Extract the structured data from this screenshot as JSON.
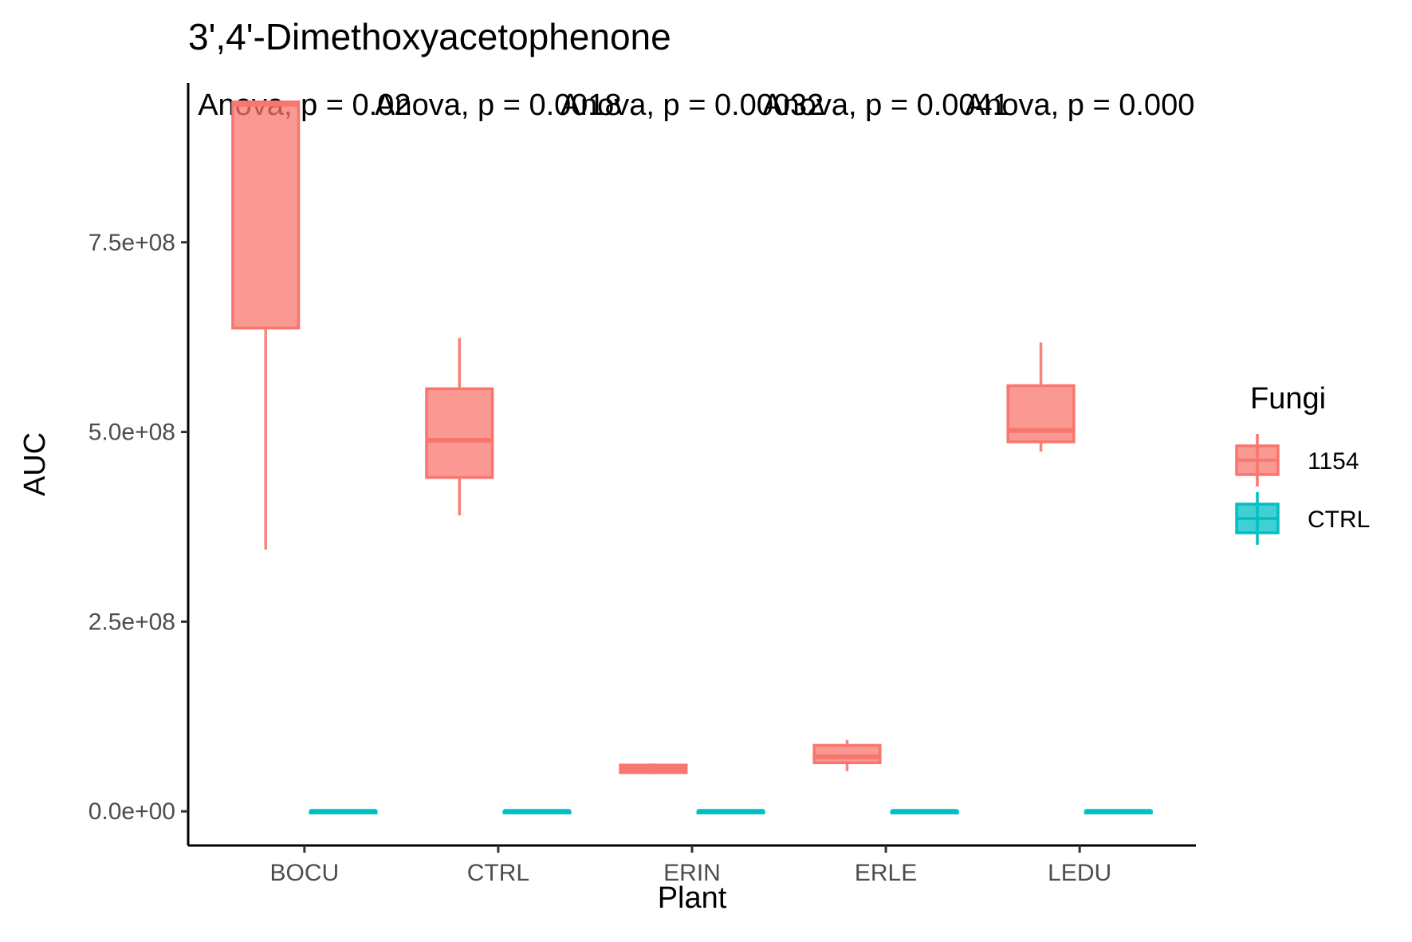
{
  "chart_data": {
    "type": "box",
    "title": "3',4'-Dimethoxyacetophenone",
    "xlabel": "Plant",
    "ylabel": "AUC",
    "categories": [
      "BOCU",
      "CTRL",
      "ERIN",
      "ERLE",
      "LEDU"
    ],
    "ylim": [
      -45000000,
      960000000
    ],
    "yticks": [
      0,
      250000000,
      500000000,
      750000000
    ],
    "ytick_labels": [
      "0.0e+00",
      "2.5e+08",
      "5.0e+08",
      "7.5e+08"
    ],
    "grid": false,
    "legend": {
      "title": "Fungi",
      "position": "right",
      "entries": [
        {
          "label": "1154",
          "color": "#f8766d"
        },
        {
          "label": "CTRL",
          "color": "#00bfc4"
        }
      ]
    },
    "series": [
      {
        "name": "1154",
        "color": "#f8766d",
        "boxes": [
          {
            "category": "BOCU",
            "min": 345000000,
            "q1": 637000000,
            "median": 932000000,
            "q3": 935000000,
            "max": 935000000
          },
          {
            "category": "CTRL",
            "min": 390000000,
            "q1": 440000000,
            "median": 489000000,
            "q3": 557000000,
            "max": 624000000
          },
          {
            "category": "ERIN",
            "min": 49000000,
            "q1": 51000000,
            "median": 56000000,
            "q3": 61000000,
            "max": 63000000
          },
          {
            "category": "ERLE",
            "min": 53000000,
            "q1": 64000000,
            "median": 72000000,
            "q3": 87000000,
            "max": 94000000
          },
          {
            "category": "LEDU",
            "min": 474000000,
            "q1": 487000000,
            "median": 502000000,
            "q3": 561000000,
            "max": 618000000
          }
        ]
      },
      {
        "name": "CTRL",
        "color": "#00bfc4",
        "boxes": [
          {
            "category": "BOCU",
            "min": 0,
            "q1": 0,
            "median": 0,
            "q3": 0,
            "max": 0
          },
          {
            "category": "CTRL",
            "min": 0,
            "q1": 0,
            "median": 0,
            "q3": 0,
            "max": 0
          },
          {
            "category": "ERIN",
            "min": 0,
            "q1": 0,
            "median": 0,
            "q3": 0,
            "max": 0
          },
          {
            "category": "ERLE",
            "min": 0,
            "q1": 0,
            "median": 0,
            "q3": 0,
            "max": 0
          },
          {
            "category": "LEDU",
            "min": 0,
            "q1": 0,
            "median": 0,
            "q3": 0,
            "max": 0
          }
        ]
      }
    ],
    "annotations": [
      {
        "category": "BOCU",
        "text": "Anova, p = 0.02"
      },
      {
        "category": "CTRL",
        "text": "Anova, p = 0.0018"
      },
      {
        "category": "ERIN",
        "text": "Anova, p = 0.00032"
      },
      {
        "category": "ERLE",
        "text": "Anova, p = 0.0041"
      },
      {
        "category": "LEDU",
        "text": "Anova, p = 0.000"
      }
    ]
  }
}
